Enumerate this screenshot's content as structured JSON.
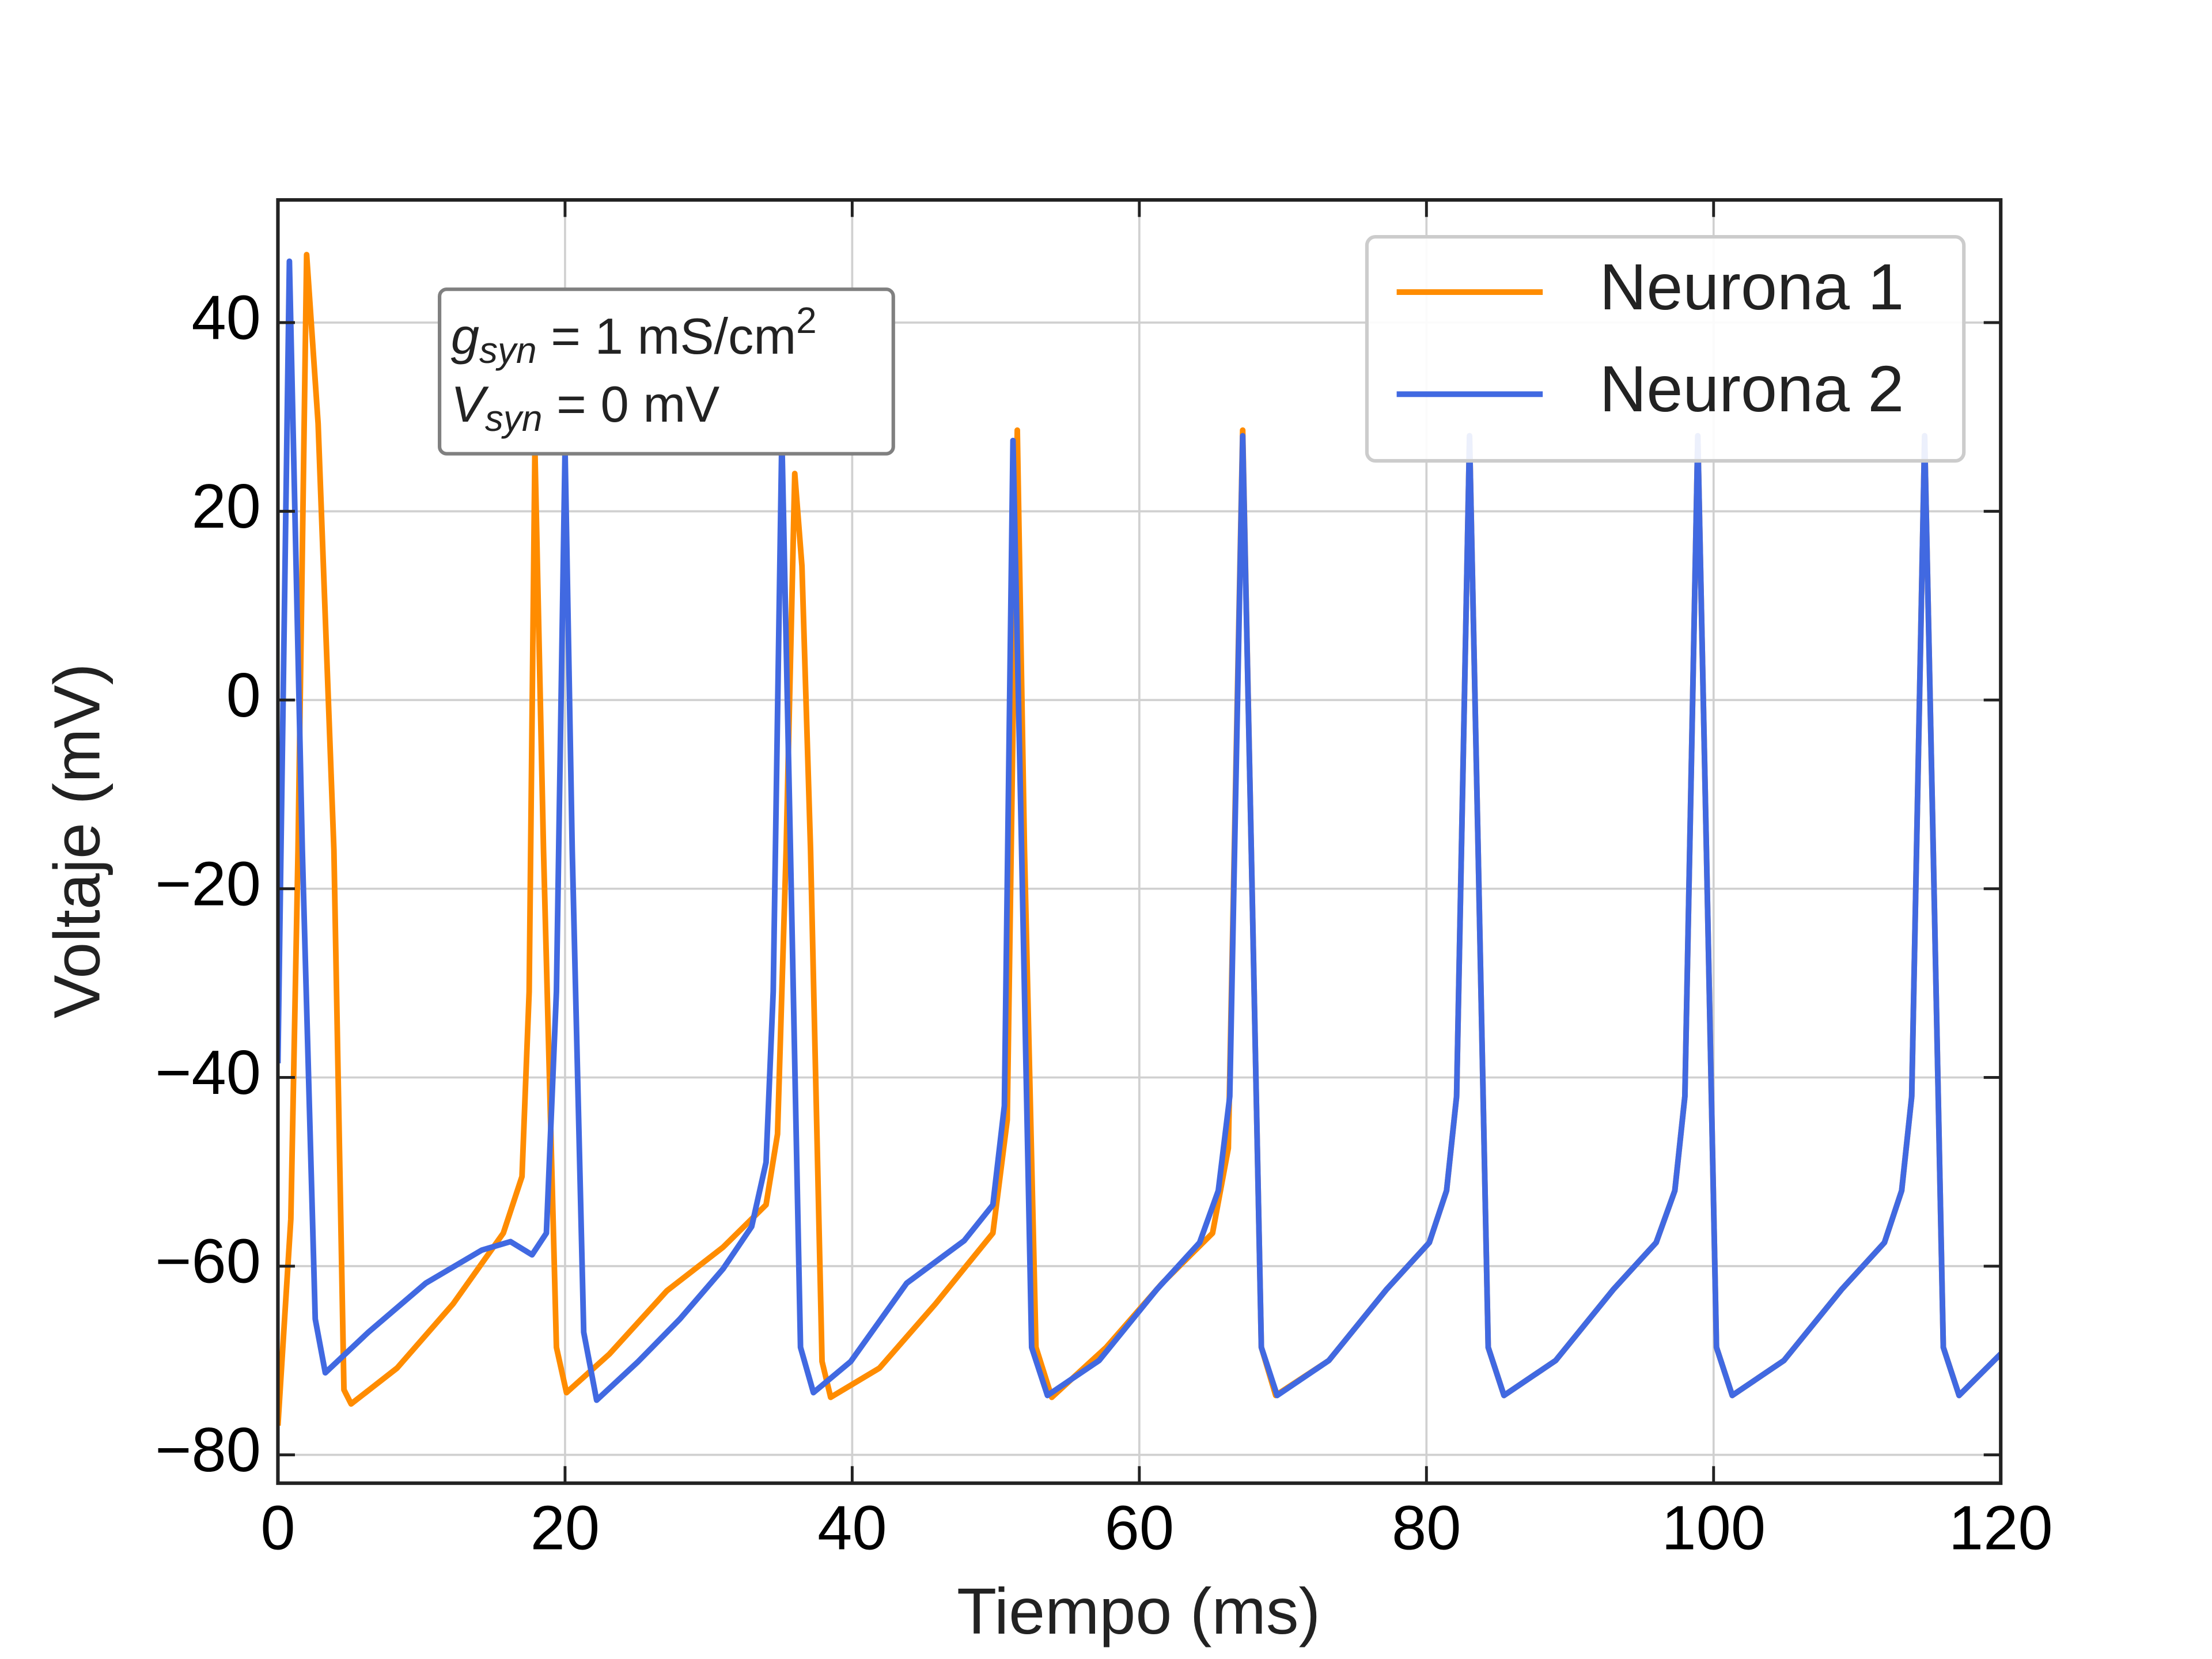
{
  "chart_data": {
    "type": "line",
    "xlabel": "Tiempo (ms)",
    "ylabel": "Voltaje (mV)",
    "xlim": [
      0,
      120
    ],
    "ylim": [
      -83,
      53
    ],
    "xticks": [
      0,
      20,
      40,
      60,
      80,
      100,
      120
    ],
    "yticks": [
      {
        "value": -80,
        "label": "−80"
      },
      {
        "value": -60,
        "label": "−60"
      },
      {
        "value": -40,
        "label": "−40"
      },
      {
        "value": -20,
        "label": "−20"
      },
      0,
      20,
      40
    ],
    "grid": true,
    "legend": "upper right",
    "annotation": [
      [
        "g",
        "syn",
        " = 1 mS/cm",
        "2"
      ],
      [
        "V",
        "syn",
        " = 0 mV"
      ]
    ],
    "series": [
      {
        "name": "Neurona 1",
        "color": "#ff8c00",
        "x": [
          0,
          0.9,
          1.4,
          2.0,
          2.8,
          3.9,
          4.6,
          5.1,
          8.3,
          12.2,
          15.7,
          17,
          17.5,
          17.9,
          18.5,
          19.4,
          20.1,
          23.1,
          27.1,
          31,
          34,
          34.8,
          35.4,
          36,
          36.5,
          37.1,
          37.9,
          38.5,
          41.9,
          45.8,
          49.8,
          50.8,
          51.5,
          52.0,
          52.8,
          53.9,
          57.7,
          61.6,
          65.1,
          66.2,
          67.2,
          67.8,
          68.5,
          69.5,
          73.2,
          77.2,
          80.2,
          81.4,
          82.1,
          83.0,
          83.6,
          84.3,
          85.4,
          89,
          93,
          96,
          97.3,
          98,
          98.9,
          99.5,
          100.2,
          101.3,
          104.9,
          108.9,
          111.9,
          113.1,
          113.8,
          114.7,
          115.3,
          116,
          117.1,
          120
        ],
        "values": [
          -76.9,
          -55,
          -15.9,
          47.2,
          29.3,
          -15.9,
          -73.1,
          -74.6,
          -70.8,
          -64,
          -56.5,
          -50.5,
          -30.9,
          26.6,
          -15.9,
          -68.6,
          -73.4,
          -69.3,
          -62.6,
          -58,
          -53.5,
          -46,
          -15.9,
          24.0,
          14.2,
          -15.9,
          -70.1,
          -73.9,
          -70.8,
          -64,
          -56.5,
          -44.5,
          28.6,
          -15.9,
          -68.6,
          -73.9,
          -68.6,
          -61.8,
          -56.5,
          -47.5,
          28.6,
          -15.9,
          -68.6,
          -73.7,
          -70,
          -62.5,
          -57.5,
          -52,
          -42,
          28,
          -15.9,
          -68.6,
          -73.7,
          -70,
          -62.5,
          -57.5,
          -52,
          -42,
          28,
          -15.9,
          -68.6,
          -73.7,
          -70,
          -62.5,
          -57.5,
          -52,
          -42,
          28,
          -15.9,
          -68.6,
          -73.7,
          -69.3
        ]
      },
      {
        "name": "Neurona 2",
        "color": "#4169e1",
        "x": [
          0,
          0.8,
          1.7,
          2.6,
          3.3,
          6.3,
          10.3,
          14.2,
          16.2,
          17.7,
          18.7,
          19.4,
          20.0,
          20.5,
          21.3,
          22.2,
          25.1,
          28.0,
          31.0,
          33.0,
          34.0,
          34.5,
          35.1,
          35.7,
          36.4,
          37.3,
          39.9,
          43.8,
          47.8,
          49.8,
          50.6,
          51.2,
          51.8,
          52.5,
          53.6,
          57.2,
          61.2,
          64.2,
          65.5,
          66.3,
          67.2,
          67.8,
          68.5,
          69.6,
          73.2,
          77.2,
          80.2,
          81.4,
          82.1,
          83.0,
          83.6,
          84.3,
          85.4,
          89,
          93,
          96,
          97.3,
          98,
          98.9,
          99.5,
          100.2,
          101.3,
          104.9,
          108.9,
          111.9,
          113.1,
          113.8,
          114.7,
          115.3,
          116,
          117.1,
          120
        ],
        "values": [
          -38.5,
          46.5,
          -15.9,
          -65.6,
          -71.3,
          -67,
          -61.8,
          -58.3,
          -57.4,
          -58.8,
          -56.5,
          -30.9,
          26.6,
          -15.9,
          -67,
          -74.2,
          -70.1,
          -65.6,
          -60.3,
          -55.8,
          -49,
          -30.9,
          28,
          -15.9,
          -68.6,
          -73.4,
          -70.1,
          -61.8,
          -57.3,
          -53.5,
          -43,
          27.5,
          -15.9,
          -68.6,
          -73.7,
          -70,
          -62.5,
          -57.5,
          -52,
          -42,
          28,
          -15.9,
          -68.6,
          -73.7,
          -70,
          -62.5,
          -57.5,
          -52,
          -42,
          28,
          -15.9,
          -68.6,
          -73.7,
          -70,
          -62.5,
          -57.5,
          -52,
          -42,
          28,
          -15.9,
          -68.6,
          -73.7,
          -70,
          -62.5,
          -57.5,
          -52,
          -42,
          28,
          -15.9,
          -68.6,
          -73.7,
          -69.3
        ]
      }
    ]
  }
}
